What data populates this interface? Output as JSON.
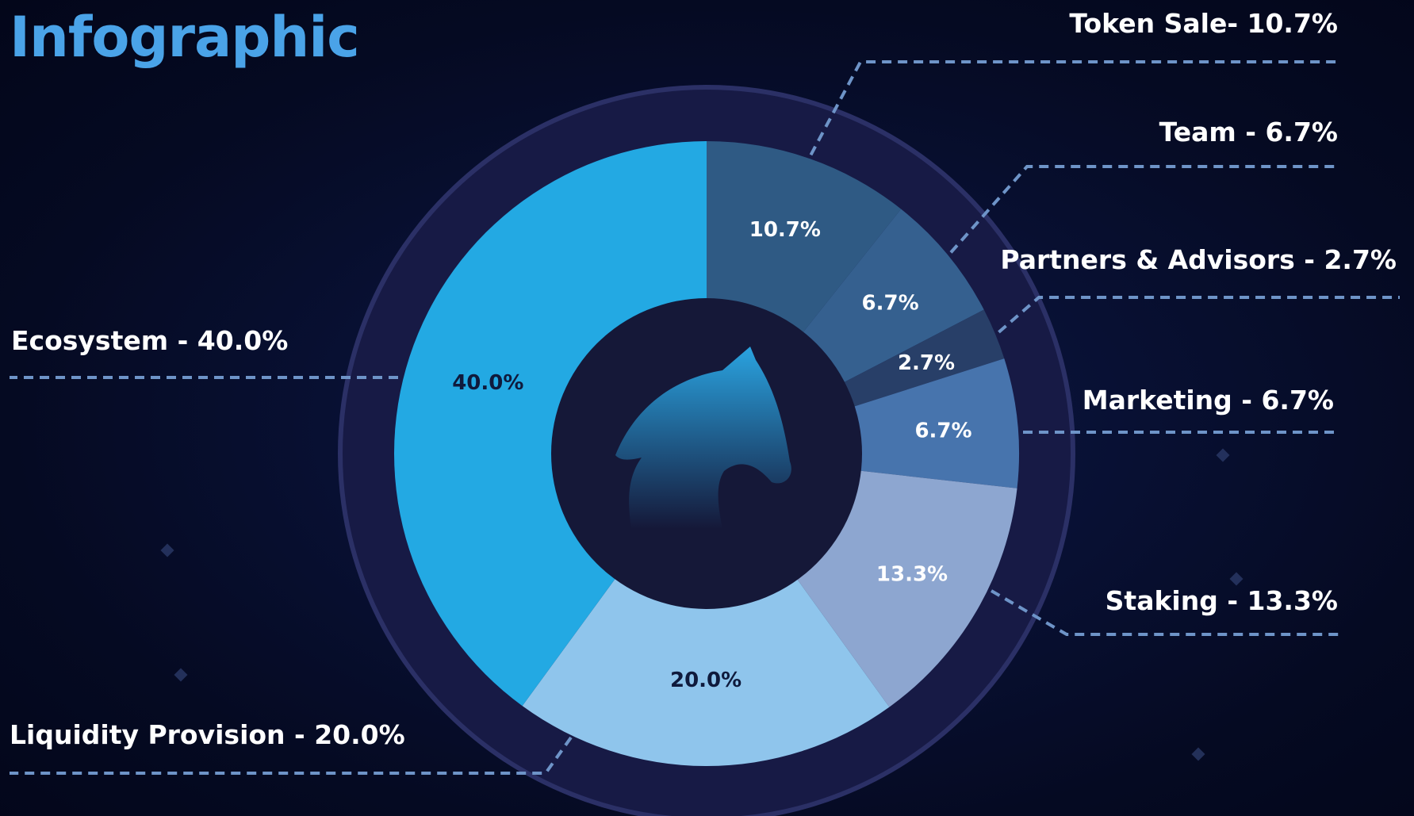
{
  "title": "Infographic",
  "colors": {
    "ring": "#171a45",
    "ring_border": "#2b3066",
    "center": "#151838",
    "leader": "#6e94c8",
    "slice_label_dark": "#0f1a3c",
    "slice_label_light": "#ffffff"
  },
  "chart_data": {
    "type": "pie",
    "title": "Infographic",
    "donut": true,
    "center_icon": "horse-head-icon",
    "slices": [
      {
        "label": "Token Sale- 10.7%",
        "value": 10.7,
        "slice_label": "10.7%",
        "color": "#2f5a84"
      },
      {
        "label": "Team - 6.7%",
        "value": 6.7,
        "slice_label": "6.7%",
        "color": "#35608f"
      },
      {
        "label": "Partners & Advisors - 2.7%",
        "value": 2.7,
        "slice_label": "2.7%",
        "color": "#283f68"
      },
      {
        "label": "Marketing - 6.7%",
        "value": 6.7,
        "slice_label": "6.7%",
        "color": "#4774ad"
      },
      {
        "label": "Staking - 13.3%",
        "value": 13.3,
        "slice_label": "13.3%",
        "color": "#8da6d0"
      },
      {
        "label": "Liquidity Provision - 20.0%",
        "value": 20.0,
        "slice_label": "20.0%",
        "color": "#8fc5ec"
      },
      {
        "label": "Ecosystem - 40.0%",
        "value": 40.0,
        "slice_label": "40.0%",
        "color": "#23a9e3"
      }
    ]
  }
}
